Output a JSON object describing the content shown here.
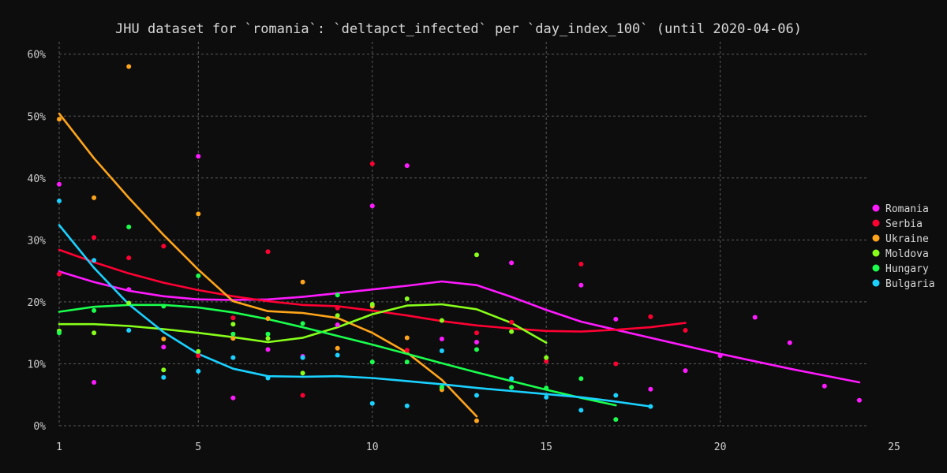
{
  "chart_data": {
    "type": "scatter",
    "title": "JHU dataset for `romania`: `deltapct_infected` per `day_index_100` (until 2020-04-06)",
    "xlabel": "",
    "ylabel": "",
    "xlim": [
      1,
      25
    ],
    "ylim": [
      0,
      62
    ],
    "x_ticks": [
      1,
      5,
      10,
      15,
      20,
      25
    ],
    "y_ticks": [
      0,
      10,
      20,
      30,
      40,
      50,
      60
    ],
    "y_tick_suffix": "%",
    "grid": true,
    "legend_position": "right",
    "series": [
      {
        "name": "Romania",
        "color": "#ff1aff",
        "points": [
          [
            1,
            39
          ],
          [
            2,
            7
          ],
          [
            3,
            22
          ],
          [
            4,
            12.7
          ],
          [
            5,
            43.5
          ],
          [
            6,
            4.5
          ],
          [
            7,
            12.3
          ],
          [
            8,
            11.2
          ],
          [
            9,
            16.3
          ],
          [
            10,
            35.5
          ],
          [
            11,
            42
          ],
          [
            12,
            14
          ],
          [
            13,
            13.5
          ],
          [
            14,
            26.3
          ],
          [
            16,
            22.7
          ],
          [
            17,
            17.2
          ],
          [
            18,
            5.9
          ],
          [
            19,
            8.9
          ],
          [
            20,
            11.3
          ],
          [
            21,
            17.5
          ],
          [
            22,
            13.4
          ],
          [
            23,
            6.4
          ],
          [
            24,
            4.1
          ]
        ],
        "trend": [
          [
            1,
            24.9
          ],
          [
            2,
            23.2
          ],
          [
            3,
            21.8
          ],
          [
            4,
            20.9
          ],
          [
            5,
            20.4
          ],
          [
            6,
            20.3
          ],
          [
            7,
            20.4
          ],
          [
            8,
            20.8
          ],
          [
            9,
            21.4
          ],
          [
            10,
            22
          ],
          [
            11,
            22.6
          ],
          [
            12,
            23.3
          ],
          [
            13,
            22.7
          ],
          [
            14,
            20.8
          ],
          [
            15,
            18.7
          ],
          [
            16,
            16.8
          ],
          [
            17,
            15.5
          ],
          [
            18,
            14.2
          ],
          [
            19,
            12.9
          ],
          [
            20,
            11.6
          ],
          [
            21,
            10.4
          ],
          [
            22,
            9.2
          ],
          [
            23,
            8.1
          ],
          [
            24,
            7
          ]
        ]
      },
      {
        "name": "Serbia",
        "color": "#ff0033",
        "points": [
          [
            1,
            24.5
          ],
          [
            2,
            30.4
          ],
          [
            3,
            27.1
          ],
          [
            4,
            29
          ],
          [
            5,
            11.3
          ],
          [
            6,
            17.4
          ],
          [
            7,
            28.1
          ],
          [
            8,
            4.9
          ],
          [
            9,
            19
          ],
          [
            10,
            42.3
          ],
          [
            11,
            12.2
          ],
          [
            12,
            6
          ],
          [
            13,
            15
          ],
          [
            14,
            16.7
          ],
          [
            15,
            10.4
          ],
          [
            16,
            26.1
          ],
          [
            17,
            10
          ],
          [
            18,
            17.6
          ],
          [
            19,
            15.4
          ]
        ],
        "trend": [
          [
            1,
            28.4
          ],
          [
            2,
            26.4
          ],
          [
            3,
            24.6
          ],
          [
            4,
            23.1
          ],
          [
            5,
            21.9
          ],
          [
            6,
            20.9
          ],
          [
            7,
            20.1
          ],
          [
            8,
            19.5
          ],
          [
            9,
            19.3
          ],
          [
            10,
            18.6
          ],
          [
            11,
            17.8
          ],
          [
            12,
            16.9
          ],
          [
            13,
            16.2
          ],
          [
            14,
            15.7
          ],
          [
            15,
            15.3
          ],
          [
            16,
            15.2
          ],
          [
            17,
            15.5
          ],
          [
            18,
            15.9
          ],
          [
            19,
            16.6
          ]
        ]
      },
      {
        "name": "Ukraine",
        "color": "#ffa51a",
        "points": [
          [
            1,
            49.5
          ],
          [
            2,
            36.8
          ],
          [
            3,
            58
          ],
          [
            4,
            14
          ],
          [
            5,
            34.2
          ],
          [
            6,
            14.1
          ],
          [
            7,
            17.3
          ],
          [
            8,
            23.2
          ],
          [
            9,
            12.5
          ],
          [
            10,
            19.3
          ],
          [
            11,
            14.2
          ],
          [
            12,
            5.8
          ],
          [
            13,
            0.8
          ]
        ],
        "trend": [
          [
            1,
            50.4
          ],
          [
            2,
            43.2
          ],
          [
            3,
            36.8
          ],
          [
            4,
            30.8
          ],
          [
            5,
            25.2
          ],
          [
            6,
            20.1
          ],
          [
            7,
            18.5
          ],
          [
            8,
            18.2
          ],
          [
            9,
            17.4
          ],
          [
            10,
            15
          ],
          [
            11,
            11.8
          ],
          [
            12,
            7.4
          ],
          [
            13,
            1.5
          ]
        ]
      },
      {
        "name": "Moldova",
        "color": "#88ff1a",
        "points": [
          [
            1,
            15.3
          ],
          [
            2,
            15
          ],
          [
            3,
            19.8
          ],
          [
            4,
            9
          ],
          [
            5,
            12
          ],
          [
            6,
            16.4
          ],
          [
            7,
            14.1
          ],
          [
            8,
            8.5
          ],
          [
            9,
            17.8
          ],
          [
            10,
            19.6
          ],
          [
            11,
            20.5
          ],
          [
            12,
            17
          ],
          [
            13,
            27.6
          ],
          [
            14,
            15.2
          ],
          [
            15,
            11
          ]
        ],
        "trend": [
          [
            1,
            16.4
          ],
          [
            2,
            16.4
          ],
          [
            3,
            16.1
          ],
          [
            4,
            15.6
          ],
          [
            5,
            15
          ],
          [
            6,
            14.3
          ],
          [
            7,
            13.5
          ],
          [
            8,
            14.2
          ],
          [
            9,
            15.9
          ],
          [
            10,
            18
          ],
          [
            11,
            19.4
          ],
          [
            12,
            19.6
          ],
          [
            13,
            18.8
          ],
          [
            14,
            16.6
          ],
          [
            15,
            13.4
          ]
        ]
      },
      {
        "name": "Hungary",
        "color": "#1aff4d",
        "points": [
          [
            1,
            15
          ],
          [
            2,
            18.6
          ],
          [
            3,
            32.1
          ],
          [
            4,
            19.3
          ],
          [
            5,
            24.2
          ],
          [
            6,
            14.8
          ],
          [
            7,
            14.8
          ],
          [
            8,
            16.5
          ],
          [
            9,
            21.1
          ],
          [
            10,
            10.3
          ],
          [
            11,
            10.3
          ],
          [
            12,
            6.2
          ],
          [
            13,
            12.3
          ],
          [
            14,
            6.2
          ],
          [
            15,
            6.1
          ],
          [
            16,
            7.6
          ],
          [
            17,
            1
          ]
        ],
        "trend": [
          [
            1,
            18.4
          ],
          [
            2,
            19.2
          ],
          [
            3,
            19.5
          ],
          [
            4,
            19.5
          ],
          [
            5,
            19.1
          ],
          [
            6,
            18.3
          ],
          [
            7,
            17.2
          ],
          [
            8,
            15.9
          ],
          [
            9,
            14.5
          ],
          [
            10,
            13.1
          ],
          [
            11,
            11.6
          ],
          [
            12,
            10.1
          ],
          [
            13,
            8.6
          ],
          [
            14,
            7.2
          ],
          [
            15,
            5.8
          ],
          [
            16,
            4.5
          ],
          [
            17,
            3.3
          ]
        ]
      },
      {
        "name": "Bulgaria",
        "color": "#1ad1ff",
        "points": [
          [
            1,
            36.3
          ],
          [
            2,
            26.7
          ],
          [
            3,
            15.4
          ],
          [
            4,
            7.8
          ],
          [
            5,
            8.8
          ],
          [
            6,
            11
          ],
          [
            7,
            7.7
          ],
          [
            8,
            11
          ],
          [
            9,
            11.4
          ],
          [
            10,
            3.6
          ],
          [
            11,
            3.2
          ],
          [
            12,
            12.1
          ],
          [
            13,
            4.9
          ],
          [
            14,
            7.6
          ],
          [
            15,
            4.6
          ],
          [
            16,
            2.5
          ],
          [
            17,
            4.9
          ],
          [
            18,
            3.1
          ]
        ],
        "trend": [
          [
            1,
            32.4
          ],
          [
            2,
            25.5
          ],
          [
            3,
            19.6
          ],
          [
            4,
            15.1
          ],
          [
            5,
            11.6
          ],
          [
            6,
            9.2
          ],
          [
            7,
            8
          ],
          [
            8,
            7.9
          ],
          [
            9,
            8
          ],
          [
            10,
            7.7
          ],
          [
            11,
            7.2
          ],
          [
            12,
            6.7
          ],
          [
            13,
            6.1
          ],
          [
            14,
            5.6
          ],
          [
            15,
            5.1
          ],
          [
            16,
            4.6
          ],
          [
            17,
            3.9
          ],
          [
            18,
            3.1
          ]
        ]
      }
    ]
  }
}
